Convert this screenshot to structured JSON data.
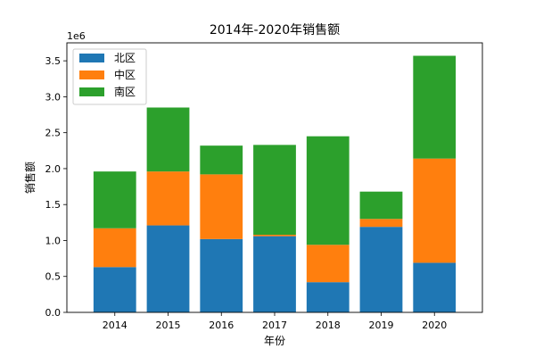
{
  "chart_data": {
    "type": "bar",
    "stacked": true,
    "title": "2014年-2020年销售额",
    "xlabel": "年份",
    "ylabel": "销售额",
    "y_offset_text": "1e6",
    "categories": [
      "2014",
      "2015",
      "2016",
      "2017",
      "2018",
      "2019",
      "2020"
    ],
    "ylim": [
      0,
      3.75
    ],
    "yticks": [
      "0.0",
      "0.5",
      "1.0",
      "1.5",
      "2.0",
      "2.5",
      "3.0",
      "3.5"
    ],
    "series": [
      {
        "name": "北区",
        "color": "#1f77b4",
        "values": [
          0.63,
          1.21,
          1.02,
          1.06,
          0.42,
          1.19,
          0.69
        ]
      },
      {
        "name": "中区",
        "color": "#ff7f0e",
        "values": [
          0.54,
          0.75,
          0.9,
          0.02,
          0.52,
          0.11,
          1.45
        ]
      },
      {
        "name": "南区",
        "color": "#2ca02c",
        "values": [
          0.79,
          0.89,
          0.4,
          1.25,
          1.51,
          0.38,
          1.43
        ]
      }
    ],
    "legend": "top-left",
    "grid": false
  }
}
